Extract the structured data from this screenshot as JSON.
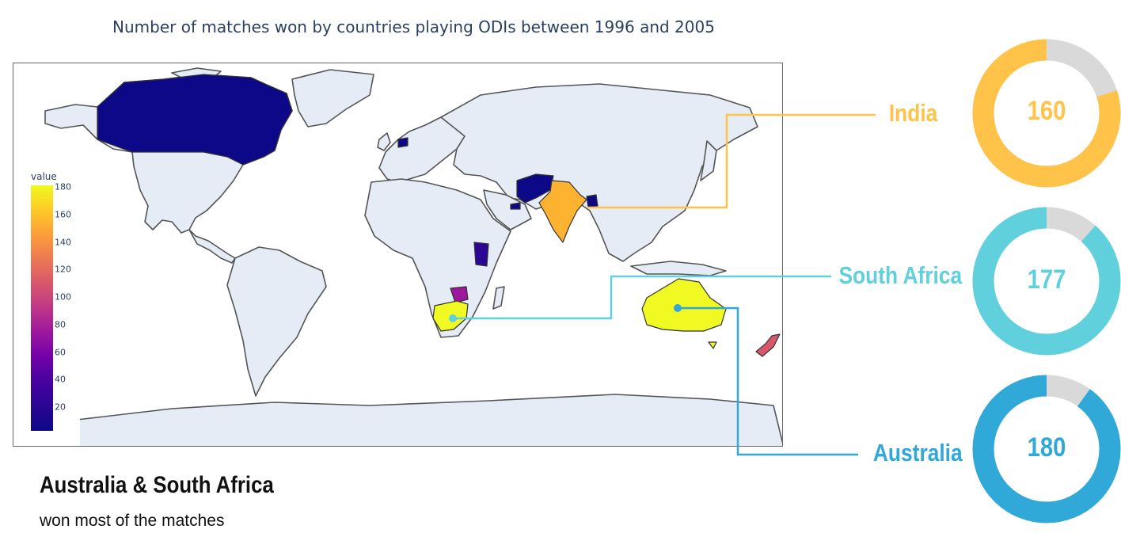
{
  "title": "Number of matches won by countries playing ODIs between 1996 and 2005",
  "colorbar": {
    "title": "value",
    "ticks": [
      "180",
      "160",
      "140",
      "120",
      "100",
      "80",
      "60",
      "40",
      "20"
    ],
    "colors": [
      "#0d0887",
      "#46039f",
      "#7201a8",
      "#9c179e",
      "#bd3786",
      "#d8576b",
      "#ed7953",
      "#fb9f3a",
      "#fdca26",
      "#f0f921"
    ]
  },
  "map_colors": {
    "land": "#e5ecf6",
    "ocean": "#ffffff",
    "border": "#555555"
  },
  "highlights": [
    {
      "name": "India",
      "value": 160,
      "value_label": "160",
      "color": "#ffc34a"
    },
    {
      "name": "South Africa",
      "value": 177,
      "value_label": "177",
      "color": "#5fd0dc"
    },
    {
      "name": "Australia",
      "value": 180,
      "value_label": "180",
      "color": "#30a8d8"
    }
  ],
  "donut_max": 200,
  "donut_track_color": "#d9d9d9",
  "headline": "Australia & South Africa",
  "subline": "won most of the matches"
}
